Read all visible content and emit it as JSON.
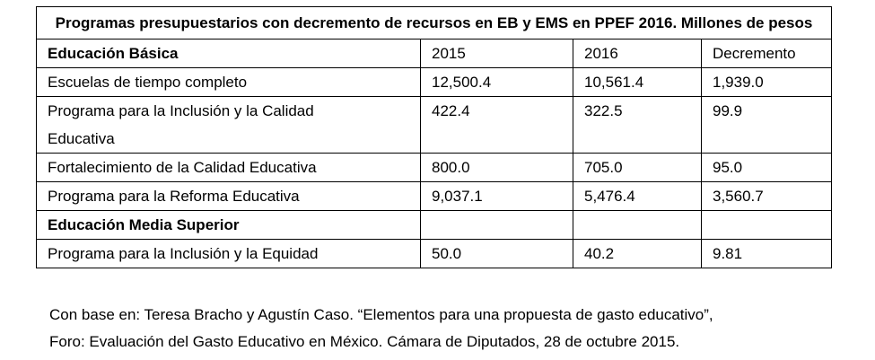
{
  "table": {
    "title": "Programas presupuestarios con decremento de recursos en EB y EMS en PPEF 2016. Millones de pesos",
    "sections": [
      {
        "name": "Educación Básica",
        "header": [
          "2015",
          "2016",
          "Decremento"
        ],
        "rows": [
          [
            "Escuelas de tiempo completo",
            "12,500.4",
            "10,561.4",
            "1,939.0"
          ],
          [
            "Programa para la Inclusión y la Calidad Educativa",
            "422.4",
            "322.5",
            "99.9"
          ],
          [
            "Fortalecimiento de la Calidad Educativa",
            "800.0",
            "705.0",
            "95.0"
          ],
          [
            "Programa para la Reforma Educativa",
            "9,037.1",
            "5,476.4",
            "3,560.7"
          ]
        ]
      },
      {
        "name": "Educación Media Superior",
        "rows": [
          [
            "Programa para la Inclusión y la Equidad",
            "50.0",
            "40.2",
            "9.81"
          ]
        ]
      }
    ]
  },
  "footer": [
    "Con base en: Teresa Bracho y Agustín Caso. “Elementos para una propuesta de gasto educativo”,",
    "Foro: Evaluación del Gasto Educativo en México. Cámara de Diputados, 28 de octubre 2015."
  ]
}
